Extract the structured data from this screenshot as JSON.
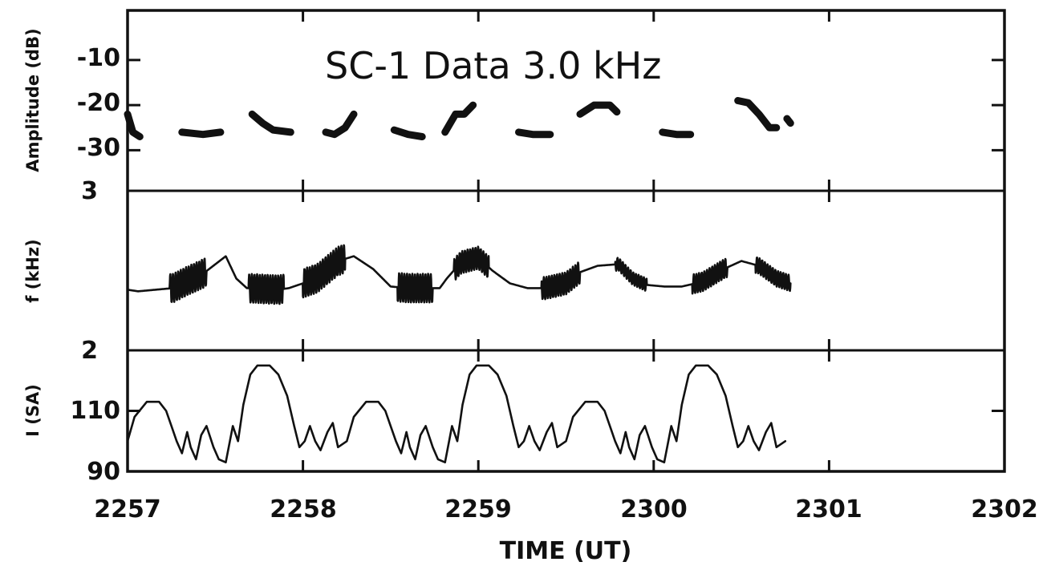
{
  "chart_data": {
    "type": "line",
    "title": "SC-1 Data 3.0 kHz",
    "xlabel": "TIME (UT)",
    "x_ticks": [
      "2257",
      "2258",
      "2259",
      "2300",
      "2301",
      "2302"
    ],
    "xlim_minutes": [
      0,
      5
    ],
    "panels": [
      {
        "name": "amplitude",
        "ylabel": "Amplitude (dB)",
        "yticks": [
          "-10",
          "-20",
          "-30"
        ],
        "ytick_values": [
          -10,
          -20,
          -30
        ],
        "ylim": [
          -39,
          1
        ],
        "segments": [
          [
            [
              0.0,
              -22
            ],
            [
              0.03,
              -26
            ],
            [
              0.07,
              -27
            ]
          ],
          [
            [
              0.31,
              -26
            ],
            [
              0.43,
              -26.5
            ],
            [
              0.53,
              -26
            ]
          ],
          [
            [
              0.71,
              -22
            ],
            [
              0.77,
              -24
            ],
            [
              0.83,
              -25.5
            ],
            [
              0.93,
              -26
            ]
          ],
          [
            [
              1.13,
              -26
            ],
            [
              1.18,
              -26.5
            ],
            [
              1.24,
              -25
            ],
            [
              1.29,
              -22
            ]
          ],
          [
            [
              1.52,
              -25.5
            ],
            [
              1.6,
              -26.5
            ],
            [
              1.68,
              -27
            ]
          ],
          [
            [
              1.81,
              -26
            ],
            [
              1.87,
              -22
            ],
            [
              1.92,
              -22
            ],
            [
              1.97,
              -20
            ]
          ],
          [
            [
              2.23,
              -26
            ],
            [
              2.31,
              -26.5
            ],
            [
              2.41,
              -26.5
            ]
          ],
          [
            [
              2.58,
              -22
            ],
            [
              2.66,
              -20
            ],
            [
              2.75,
              -20
            ],
            [
              2.79,
              -21.5
            ]
          ],
          [
            [
              3.05,
              -26
            ],
            [
              3.13,
              -26.5
            ],
            [
              3.21,
              -26.5
            ]
          ],
          [
            [
              3.48,
              -19
            ],
            [
              3.54,
              -19.5
            ],
            [
              3.6,
              -22
            ],
            [
              3.66,
              -25
            ],
            [
              3.7,
              -25
            ]
          ],
          [
            [
              3.76,
              -23
            ],
            [
              3.78,
              -24
            ]
          ]
        ]
      },
      {
        "name": "frequency",
        "ylabel": "f (kHz)",
        "yticks": [
          "3",
          "2"
        ],
        "ytick_values": [
          3,
          2
        ],
        "ylim": [
          2,
          3
        ],
        "envelope": [
          [
            0.0,
            2.38
          ],
          [
            0.06,
            2.37
          ],
          [
            0.26,
            2.39
          ],
          [
            0.33,
            2.43
          ],
          [
            0.43,
            2.48
          ],
          [
            0.56,
            2.59
          ],
          [
            0.62,
            2.45
          ],
          [
            0.68,
            2.39
          ],
          [
            0.86,
            2.38
          ],
          [
            0.92,
            2.39
          ],
          [
            1.08,
            2.45
          ],
          [
            1.2,
            2.56
          ],
          [
            1.29,
            2.59
          ],
          [
            1.4,
            2.51
          ],
          [
            1.5,
            2.4
          ],
          [
            1.6,
            2.39
          ],
          [
            1.78,
            2.39
          ],
          [
            1.82,
            2.45
          ],
          [
            1.9,
            2.55
          ],
          [
            2.0,
            2.58
          ],
          [
            2.08,
            2.5
          ],
          [
            2.18,
            2.42
          ],
          [
            2.28,
            2.39
          ],
          [
            2.38,
            2.39
          ],
          [
            2.5,
            2.42
          ],
          [
            2.58,
            2.49
          ],
          [
            2.68,
            2.53
          ],
          [
            2.8,
            2.54
          ],
          [
            2.88,
            2.45
          ],
          [
            2.96,
            2.41
          ],
          [
            3.06,
            2.4
          ],
          [
            3.16,
            2.4
          ],
          [
            3.28,
            2.43
          ],
          [
            3.4,
            2.51
          ],
          [
            3.5,
            2.56
          ],
          [
            3.6,
            2.53
          ],
          [
            3.7,
            2.45
          ],
          [
            3.78,
            2.42
          ]
        ],
        "oscillation_bursts": [
          [
            0.24,
            0.45,
            0.09
          ],
          [
            0.69,
            0.89,
            0.09
          ],
          [
            1.0,
            1.24,
            0.09
          ],
          [
            1.54,
            1.74,
            0.09
          ],
          [
            1.86,
            2.06,
            0.07
          ],
          [
            2.36,
            2.58,
            0.07
          ],
          [
            2.78,
            2.96,
            0.04
          ],
          [
            3.22,
            3.42,
            0.06
          ],
          [
            3.58,
            3.78,
            0.05
          ]
        ]
      },
      {
        "name": "intensity",
        "ylabel": "I (SA)",
        "yticks": [
          "110",
          "90"
        ],
        "ytick_values": [
          110,
          90
        ],
        "ylim": [
          90,
          130
        ],
        "period_minutes": 1.25,
        "cycle": [
          [
            0.0,
            100
          ],
          [
            0.04,
            108
          ],
          [
            0.11,
            113
          ],
          [
            0.18,
            113
          ],
          [
            0.22,
            110
          ],
          [
            0.25,
            105
          ],
          [
            0.28,
            100
          ],
          [
            0.31,
            96
          ],
          [
            0.34,
            103
          ],
          [
            0.36,
            98
          ],
          [
            0.39,
            94
          ],
          [
            0.42,
            102
          ],
          [
            0.45,
            105
          ],
          [
            0.49,
            98
          ],
          [
            0.52,
            94
          ],
          [
            0.56,
            93
          ],
          [
            0.6,
            105
          ],
          [
            0.63,
            100
          ],
          [
            0.66,
            112
          ],
          [
            0.7,
            122
          ],
          [
            0.74,
            125
          ],
          [
            0.81,
            125
          ],
          [
            0.86,
            122
          ],
          [
            0.91,
            115
          ],
          [
            0.95,
            105
          ],
          [
            0.98,
            98
          ],
          [
            1.01,
            100
          ],
          [
            1.04,
            105
          ],
          [
            1.07,
            100
          ],
          [
            1.1,
            97
          ],
          [
            1.14,
            103
          ],
          [
            1.17,
            106
          ],
          [
            1.2,
            98
          ],
          [
            1.25,
            100
          ]
        ]
      }
    ]
  }
}
